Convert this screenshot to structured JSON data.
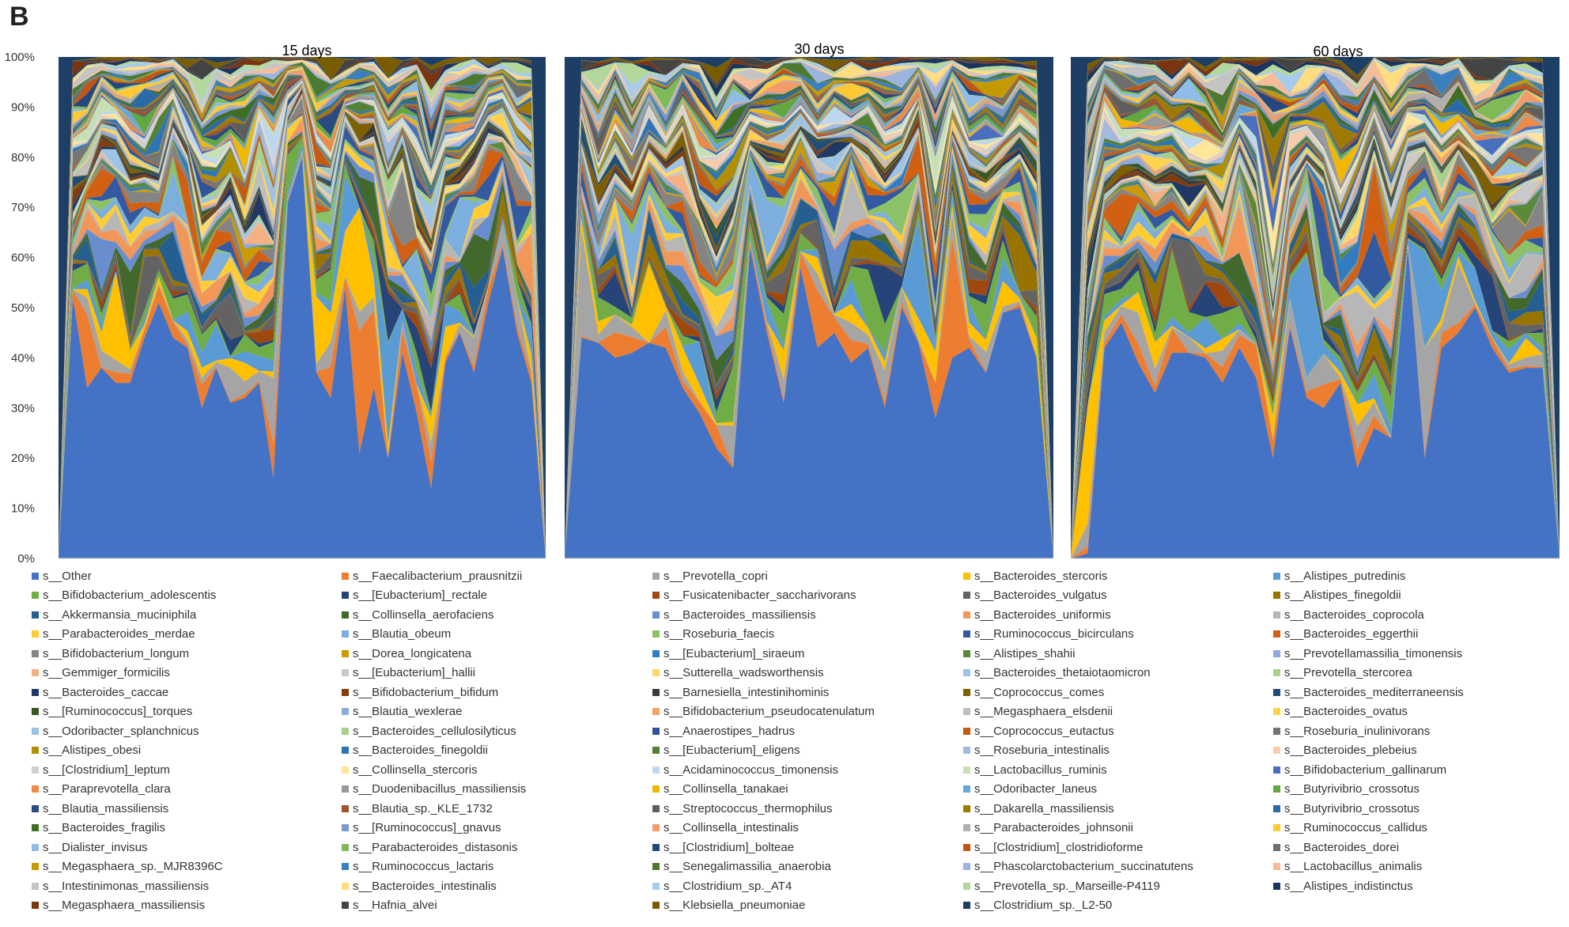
{
  "panel_label": "B",
  "chart_data": {
    "type": "area",
    "stacking": "percent",
    "yticks": [
      "0%",
      "10%",
      "20%",
      "30%",
      "40%",
      "50%",
      "60%",
      "70%",
      "80%",
      "90%",
      "100%"
    ],
    "ylim": [
      0,
      100
    ],
    "grid": false,
    "legend_position": "bottom",
    "panels": [
      {
        "title": "15 days",
        "other": [
          0,
          52,
          34,
          38,
          35,
          35,
          44,
          51,
          44,
          42,
          30,
          38,
          31,
          32,
          35,
          16,
          71,
          80,
          37,
          32,
          54,
          21,
          34,
          20,
          41,
          29,
          14,
          39,
          45,
          37,
          51,
          62,
          45,
          35,
          0
        ]
      },
      {
        "title": "30 days",
        "other": [
          0,
          44,
          43,
          40,
          41,
          43,
          42,
          34,
          29,
          22,
          18,
          62,
          45,
          31,
          58,
          42,
          45,
          39,
          42,
          30,
          50,
          43,
          28,
          40,
          42,
          37,
          49,
          50,
          40,
          0
        ]
      },
      {
        "title": "60 days",
        "other": [
          0,
          1,
          42,
          47,
          39,
          33,
          41,
          41,
          40,
          35,
          42,
          36,
          20,
          46,
          32,
          30,
          35,
          18,
          26,
          24,
          62,
          20,
          42,
          45,
          50,
          42,
          37,
          38,
          38,
          0
        ]
      }
    ],
    "series": [
      {
        "name": "s__Other",
        "color": "#4472c4"
      },
      {
        "name": "s__Faecalibacterium_prausnitzii",
        "color": "#ed7d31"
      },
      {
        "name": "s__Prevotella_copri",
        "color": "#a5a5a5"
      },
      {
        "name": "s__Bacteroides_stercoris",
        "color": "#ffc000"
      },
      {
        "name": "s__Alistipes_putredinis",
        "color": "#5b9bd5"
      },
      {
        "name": "s__Bifidobacterium_adolescentis",
        "color": "#70ad47"
      },
      {
        "name": "s__[Eubacterium]_rectale",
        "color": "#264478"
      },
      {
        "name": "s__Fusicatenibacter_saccharivorans",
        "color": "#9e480e"
      },
      {
        "name": "s__Bacteroides_vulgatus",
        "color": "#636363"
      },
      {
        "name": "s__Alistipes_finegoldii",
        "color": "#997300"
      },
      {
        "name": "s__Akkermansia_muciniphila",
        "color": "#255e91"
      },
      {
        "name": "s__Collinsella_aerofaciens",
        "color": "#43682b"
      },
      {
        "name": "s__Bacteroides_massiliensis",
        "color": "#698ed0"
      },
      {
        "name": "s__Bacteroides_uniformis",
        "color": "#f1975a"
      },
      {
        "name": "s__Bacteroides_coprocola",
        "color": "#b7b7b7"
      },
      {
        "name": "s__Parabacteroides_merdae",
        "color": "#ffcd33"
      },
      {
        "name": "s__Blautia_obeum",
        "color": "#7cafdd"
      },
      {
        "name": "s__Roseburia_faecis",
        "color": "#8cc168"
      },
      {
        "name": "s__Ruminococcus_bicirculans",
        "color": "#335aa1"
      },
      {
        "name": "s__Bacteroides_eggerthii",
        "color": "#d26012"
      },
      {
        "name": "s__Bifidobacterium_longum",
        "color": "#848484"
      },
      {
        "name": "s__Dorea_longicatena",
        "color": "#cc9a00"
      },
      {
        "name": "s__[Eubacterium]_siraeum",
        "color": "#327dc2"
      },
      {
        "name": "s__Alistipes_shahii",
        "color": "#5a8a39"
      },
      {
        "name": "s__Prevotellamassilia_timonensis",
        "color": "#8faadc"
      },
      {
        "name": "s__Gemmiger_formicilis",
        "color": "#f4b183"
      },
      {
        "name": "s__[Eubacterium]_hallii",
        "color": "#c9c9c9"
      },
      {
        "name": "s__Sutterella_wadsworthensis",
        "color": "#ffd966"
      },
      {
        "name": "s__Bacteroides_thetaiotaomicron",
        "color": "#9dc3e6"
      },
      {
        "name": "s__Prevotella_stercorea",
        "color": "#a9d18e"
      },
      {
        "name": "s__Bacteroides_caccae",
        "color": "#203864"
      },
      {
        "name": "s__Bifidobacterium_bifidum",
        "color": "#843c0c"
      },
      {
        "name": "s__Barnesiella_intestinihominis",
        "color": "#3a3a3a"
      },
      {
        "name": "s__Coprococcus_comes",
        "color": "#7f6000"
      },
      {
        "name": "s__Bacteroides_mediterraneensis",
        "color": "#1f4e79"
      },
      {
        "name": "s__[Ruminococcus]_torques",
        "color": "#385723"
      },
      {
        "name": "s__Blautia_wexlerae",
        "color": "#8ea9db"
      },
      {
        "name": "s__Bifidobacterium_pseudocatenulatum",
        "color": "#f4a261"
      },
      {
        "name": "s__Megasphaera_elsdenii",
        "color": "#bfbfbf"
      },
      {
        "name": "s__Bacteroides_ovatus",
        "color": "#ffd34d"
      },
      {
        "name": "s__Odoribacter_splanchnicus",
        "color": "#9cc2e5"
      },
      {
        "name": "s__Bacteroides_cellulosilyticus",
        "color": "#a8d08d"
      },
      {
        "name": "s__Anaerostipes_hadrus",
        "color": "#2f5597"
      },
      {
        "name": "s__Coprococcus_eutactus",
        "color": "#c55a11"
      },
      {
        "name": "s__Roseburia_inulinivorans",
        "color": "#757575"
      },
      {
        "name": "s__Alistipes_obesi",
        "color": "#b38f00"
      },
      {
        "name": "s__Bacteroides_finegoldii",
        "color": "#2e75b6"
      },
      {
        "name": "s__[Eubacterium]_eligens",
        "color": "#548235"
      },
      {
        "name": "s__Roseburia_intestinalis",
        "color": "#a4b9e0"
      },
      {
        "name": "s__Bacteroides_plebeius",
        "color": "#f8cbad"
      },
      {
        "name": "s__[Clostridium]_leptum",
        "color": "#d0d0d0"
      },
      {
        "name": "s__Collinsella_stercoris",
        "color": "#ffe699"
      },
      {
        "name": "s__Acidaminococcus_timonensis",
        "color": "#bdd7ee"
      },
      {
        "name": "s__Lactobacillus_ruminis",
        "color": "#c5e0b4"
      },
      {
        "name": "s__Bifidobacterium_gallinarum",
        "color": "#4a6fbf"
      },
      {
        "name": "s__Paraprevotella_clara",
        "color": "#ee8a45"
      },
      {
        "name": "s__Duodenibacillus_massiliensis",
        "color": "#9a9a9a"
      },
      {
        "name": "s__Collinsella_tanakaei",
        "color": "#f0b800"
      },
      {
        "name": "s__Odoribacter_laneus",
        "color": "#6aa6dc"
      },
      {
        "name": "s__Butyrivibrio_crossotus",
        "color": "#62a83e"
      },
      {
        "name": "s__Blautia_massiliensis",
        "color": "#2a4a82"
      },
      {
        "name": "s__Blautia_sp._KLE_1732",
        "color": "#a0522d"
      },
      {
        "name": "s__Streptococcus_thermophilus",
        "color": "#5e5e5e"
      },
      {
        "name": "s__Dakarella_massiliensis",
        "color": "#a07a00"
      },
      {
        "name": "s__Butyrivibrio_crossotus",
        "color": "#2b6aa8"
      },
      {
        "name": "s__Bacteroides_fragilis",
        "color": "#3e6e22"
      },
      {
        "name": "s__[Ruminococcus]_gnavus",
        "color": "#7b98cf"
      },
      {
        "name": "s__Collinsella_intestinalis",
        "color": "#f29c6a"
      },
      {
        "name": "s__Parabacteroides_johnsonii",
        "color": "#b0b0b0"
      },
      {
        "name": "s__Ruminococcus_callidus",
        "color": "#ffc933"
      },
      {
        "name": "s__Dialister_invisus",
        "color": "#8fbde8"
      },
      {
        "name": "s__Parabacteroides_distasonis",
        "color": "#7fba56"
      },
      {
        "name": "s__[Clostridium]_bolteae",
        "color": "#26467e"
      },
      {
        "name": "s__[Clostridium]_clostridioforme",
        "color": "#c2540f"
      },
      {
        "name": "s__Bacteroides_dorei",
        "color": "#6e6e6e"
      },
      {
        "name": "s__Megasphaera_sp._MJR8396C",
        "color": "#c49a00"
      },
      {
        "name": "s__Ruminococcus_lactaris",
        "color": "#3a80c0"
      },
      {
        "name": "s__Senegalimassilia_anaerobia",
        "color": "#4d7a30"
      },
      {
        "name": "s__Phascolarctobacterium_succinatutens",
        "color": "#9db4de"
      },
      {
        "name": "s__Lactobacillus_animalis",
        "color": "#f6bc98"
      },
      {
        "name": "s__Intestinimonas_massiliensis",
        "color": "#c4c4c4"
      },
      {
        "name": "s__Bacteroides_intestinalis",
        "color": "#ffdd80"
      },
      {
        "name": "s__Clostridium_sp._AT4",
        "color": "#a7cbeb"
      },
      {
        "name": "s__Prevotella_sp._Marseille-P4119",
        "color": "#b4d89b"
      },
      {
        "name": "s__Alistipes_indistinctus",
        "color": "#1c355e"
      },
      {
        "name": "s__Megasphaera_massiliensis",
        "color": "#7a3510"
      },
      {
        "name": "s__Hafnia_alvei",
        "color": "#444444"
      },
      {
        "name": "s__Klebsiella_pneumoniae",
        "color": "#7a5c00"
      },
      {
        "name": "s__Clostridium_sp._L2-50",
        "color": "#1d3f66"
      }
    ]
  }
}
